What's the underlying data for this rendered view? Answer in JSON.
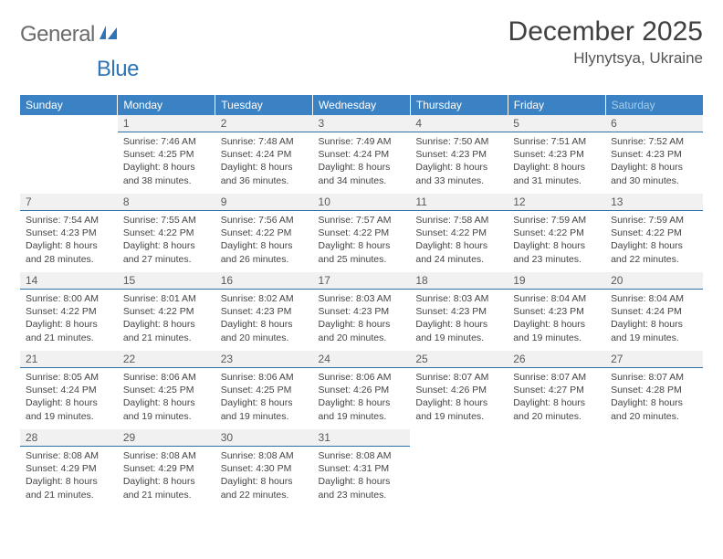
{
  "brand": {
    "part1": "General",
    "part2": "Blue",
    "color_gray": "#6b6b6b",
    "color_blue": "#2f74b5"
  },
  "title": "December 2025",
  "location": "Hlynytsya, Ukraine",
  "colors": {
    "header_bg": "#3b82c4",
    "header_text": "#ffffff",
    "weekend_text": "#a8cde8",
    "daybar_bg": "#f1f1f1",
    "daybar_border": "#2f6fa8",
    "body_text": "#444444"
  },
  "weekdays": [
    "Sunday",
    "Monday",
    "Tuesday",
    "Wednesday",
    "Thursday",
    "Friday",
    "Saturday"
  ],
  "weeks": [
    [
      null,
      {
        "n": "1",
        "sr": "7:46 AM",
        "ss": "4:25 PM",
        "dl": "8 hours and 38 minutes."
      },
      {
        "n": "2",
        "sr": "7:48 AM",
        "ss": "4:24 PM",
        "dl": "8 hours and 36 minutes."
      },
      {
        "n": "3",
        "sr": "7:49 AM",
        "ss": "4:24 PM",
        "dl": "8 hours and 34 minutes."
      },
      {
        "n": "4",
        "sr": "7:50 AM",
        "ss": "4:23 PM",
        "dl": "8 hours and 33 minutes."
      },
      {
        "n": "5",
        "sr": "7:51 AM",
        "ss": "4:23 PM",
        "dl": "8 hours and 31 minutes."
      },
      {
        "n": "6",
        "sr": "7:52 AM",
        "ss": "4:23 PM",
        "dl": "8 hours and 30 minutes."
      }
    ],
    [
      {
        "n": "7",
        "sr": "7:54 AM",
        "ss": "4:23 PM",
        "dl": "8 hours and 28 minutes."
      },
      {
        "n": "8",
        "sr": "7:55 AM",
        "ss": "4:22 PM",
        "dl": "8 hours and 27 minutes."
      },
      {
        "n": "9",
        "sr": "7:56 AM",
        "ss": "4:22 PM",
        "dl": "8 hours and 26 minutes."
      },
      {
        "n": "10",
        "sr": "7:57 AM",
        "ss": "4:22 PM",
        "dl": "8 hours and 25 minutes."
      },
      {
        "n": "11",
        "sr": "7:58 AM",
        "ss": "4:22 PM",
        "dl": "8 hours and 24 minutes."
      },
      {
        "n": "12",
        "sr": "7:59 AM",
        "ss": "4:22 PM",
        "dl": "8 hours and 23 minutes."
      },
      {
        "n": "13",
        "sr": "7:59 AM",
        "ss": "4:22 PM",
        "dl": "8 hours and 22 minutes."
      }
    ],
    [
      {
        "n": "14",
        "sr": "8:00 AM",
        "ss": "4:22 PM",
        "dl": "8 hours and 21 minutes."
      },
      {
        "n": "15",
        "sr": "8:01 AM",
        "ss": "4:22 PM",
        "dl": "8 hours and 21 minutes."
      },
      {
        "n": "16",
        "sr": "8:02 AM",
        "ss": "4:23 PM",
        "dl": "8 hours and 20 minutes."
      },
      {
        "n": "17",
        "sr": "8:03 AM",
        "ss": "4:23 PM",
        "dl": "8 hours and 20 minutes."
      },
      {
        "n": "18",
        "sr": "8:03 AM",
        "ss": "4:23 PM",
        "dl": "8 hours and 19 minutes."
      },
      {
        "n": "19",
        "sr": "8:04 AM",
        "ss": "4:23 PM",
        "dl": "8 hours and 19 minutes."
      },
      {
        "n": "20",
        "sr": "8:04 AM",
        "ss": "4:24 PM",
        "dl": "8 hours and 19 minutes."
      }
    ],
    [
      {
        "n": "21",
        "sr": "8:05 AM",
        "ss": "4:24 PM",
        "dl": "8 hours and 19 minutes."
      },
      {
        "n": "22",
        "sr": "8:06 AM",
        "ss": "4:25 PM",
        "dl": "8 hours and 19 minutes."
      },
      {
        "n": "23",
        "sr": "8:06 AM",
        "ss": "4:25 PM",
        "dl": "8 hours and 19 minutes."
      },
      {
        "n": "24",
        "sr": "8:06 AM",
        "ss": "4:26 PM",
        "dl": "8 hours and 19 minutes."
      },
      {
        "n": "25",
        "sr": "8:07 AM",
        "ss": "4:26 PM",
        "dl": "8 hours and 19 minutes."
      },
      {
        "n": "26",
        "sr": "8:07 AM",
        "ss": "4:27 PM",
        "dl": "8 hours and 20 minutes."
      },
      {
        "n": "27",
        "sr": "8:07 AM",
        "ss": "4:28 PM",
        "dl": "8 hours and 20 minutes."
      }
    ],
    [
      {
        "n": "28",
        "sr": "8:08 AM",
        "ss": "4:29 PM",
        "dl": "8 hours and 21 minutes."
      },
      {
        "n": "29",
        "sr": "8:08 AM",
        "ss": "4:29 PM",
        "dl": "8 hours and 21 minutes."
      },
      {
        "n": "30",
        "sr": "8:08 AM",
        "ss": "4:30 PM",
        "dl": "8 hours and 22 minutes."
      },
      {
        "n": "31",
        "sr": "8:08 AM",
        "ss": "4:31 PM",
        "dl": "8 hours and 23 minutes."
      },
      null,
      null,
      null
    ]
  ],
  "labels": {
    "sunrise": "Sunrise:",
    "sunset": "Sunset:",
    "daylight": "Daylight:"
  }
}
